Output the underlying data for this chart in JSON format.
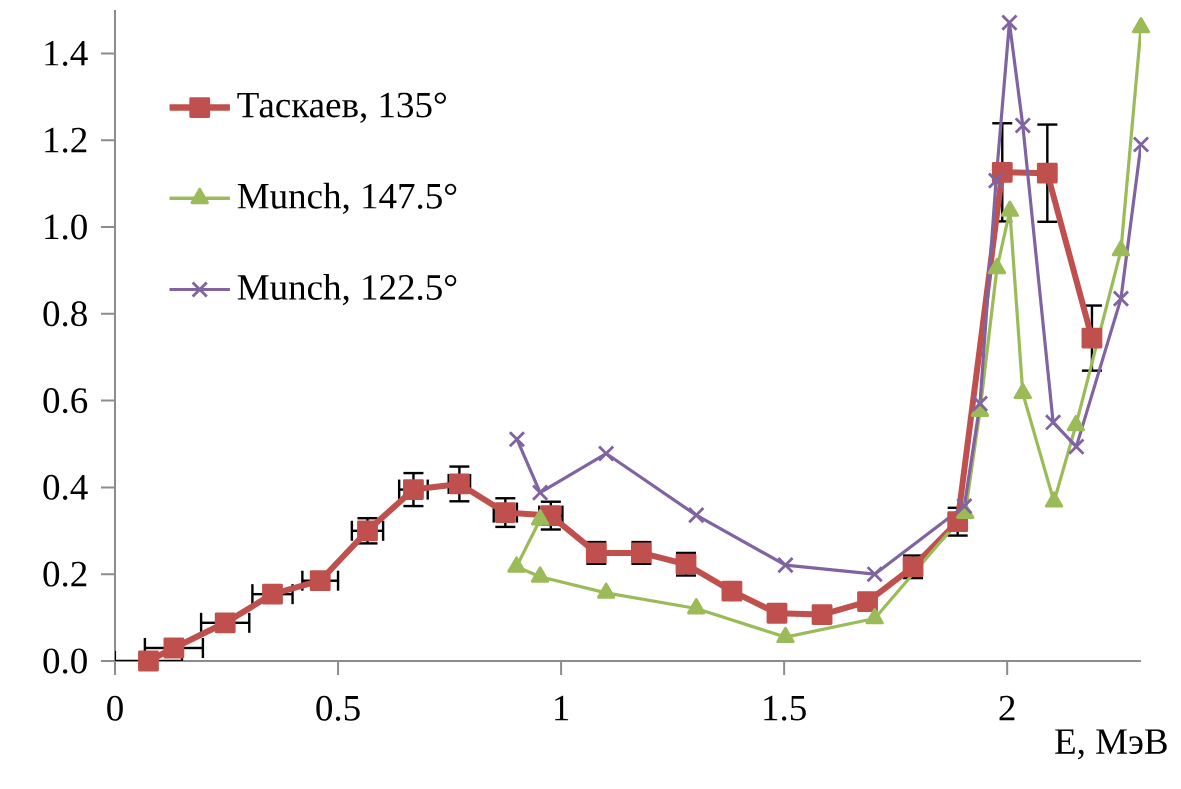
{
  "chart_data": {
    "type": "line",
    "xlabel": "E, МэВ",
    "xlim": [
      0,
      2.3
    ],
    "ylim": [
      0,
      1.5
    ],
    "xticks": [
      0,
      0.5,
      1,
      1.5,
      2
    ],
    "yticks": [
      {
        "value": 0,
        "label": "0.0"
      },
      {
        "value": 0.2,
        "label": "0.2"
      },
      {
        "value": 0.4,
        "label": "0.4"
      },
      {
        "value": 0.6,
        "label": "0.6"
      },
      {
        "value": 0.8,
        "label": "0.8"
      },
      {
        "value": 1.0,
        "label": "1.0"
      },
      {
        "value": 1.2,
        "label": "1.2"
      },
      {
        "value": 1.4,
        "label": "1.4"
      }
    ],
    "legend": "top left",
    "series": [
      {
        "name": "Таскаев, 135°",
        "color": "#c0504d",
        "marker": "square",
        "x": [
          0.075,
          0.132,
          0.247,
          0.353,
          0.46,
          0.566,
          0.669,
          0.772,
          0.875,
          0.977,
          1.079,
          1.18,
          1.28,
          1.383,
          1.484,
          1.585,
          1.687,
          1.789,
          1.889,
          1.989,
          2.09,
          2.19
        ],
        "values": [
          0.0,
          0.03,
          0.088,
          0.154,
          0.185,
          0.3,
          0.395,
          0.408,
          0.342,
          0.335,
          0.249,
          0.249,
          0.223,
          0.161,
          0.11,
          0.107,
          0.137,
          0.217,
          0.321,
          1.126,
          1.124,
          0.744
        ],
        "errors": [
          null,
          null,
          null,
          null,
          null,
          0.029,
          0.038,
          0.04,
          0.033,
          0.032,
          0.025,
          0.025,
          0.026,
          null,
          null,
          null,
          null,
          0.026,
          0.032,
          0.113,
          0.112,
          0.075
        ],
        "xerrors": [
          0.075,
          0.065,
          0.054,
          0.045,
          0.04,
          0.035,
          0.032,
          0.024,
          0.026,
          0.026,
          null,
          null,
          null,
          null,
          null,
          null,
          null,
          null,
          null,
          null,
          null,
          null
        ]
      },
      {
        "name": "Munch, 147.5°",
        "color": "#9bbb59",
        "marker": "triangle",
        "x": [
          0.953,
          0.9,
          0.953,
          1.101,
          1.303,
          1.503,
          1.703,
          1.906,
          1.939,
          1.977,
          2.006,
          2.035,
          2.105,
          2.154,
          2.255,
          2.3
        ],
        "values": [
          0.326,
          0.217,
          0.194,
          0.157,
          0.121,
          0.055,
          0.098,
          0.341,
          0.576,
          0.905,
          1.037,
          0.617,
          0.367,
          0.543,
          0.946,
          1.46
        ]
      },
      {
        "name": "Munch, 122.5°",
        "color": "#8064a2",
        "marker": "cross",
        "x": [
          0.901,
          0.953,
          1.101,
          1.303,
          1.503,
          1.703,
          1.904,
          1.939,
          1.975,
          2.005,
          2.035,
          2.103,
          2.155,
          2.255,
          2.3
        ],
        "values": [
          0.511,
          0.388,
          0.478,
          0.336,
          0.221,
          0.2,
          0.357,
          0.593,
          1.107,
          1.471,
          1.234,
          0.55,
          0.494,
          0.835,
          1.19
        ]
      }
    ]
  }
}
